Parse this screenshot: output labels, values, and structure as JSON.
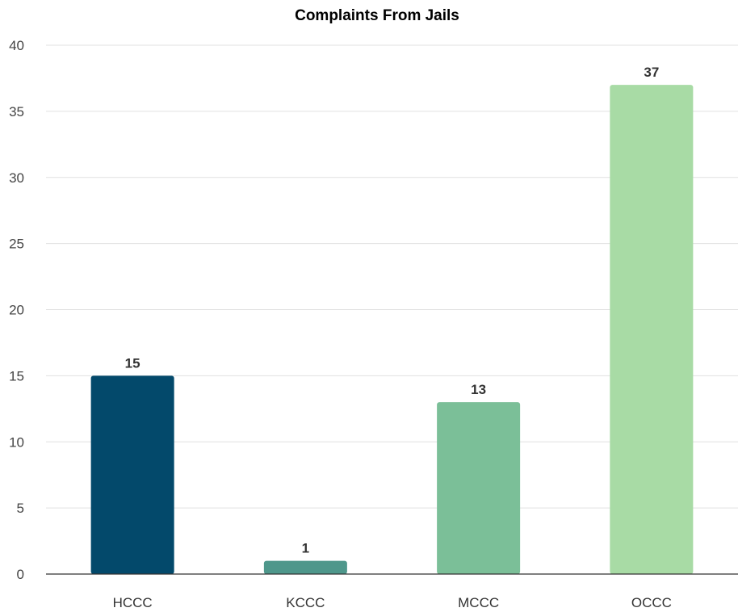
{
  "chart_data": {
    "type": "bar",
    "title": "Complaints From Jails",
    "xlabel": "",
    "ylabel": "",
    "categories": [
      "HCCC",
      "KCCC",
      "MCCC",
      "OCCC"
    ],
    "values": [
      15,
      1,
      13,
      37
    ],
    "data_labels": [
      "15",
      "1",
      "13",
      "37"
    ],
    "colors": [
      "#03496b",
      "#4e978b",
      "#7bbf98",
      "#a8dba5"
    ],
    "ylim": [
      0,
      40
    ],
    "yticks": [
      0,
      5,
      10,
      15,
      20,
      25,
      30,
      35,
      40
    ],
    "grid": true,
    "legend": "none"
  }
}
